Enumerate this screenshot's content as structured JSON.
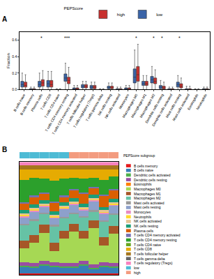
{
  "chart_data": [
    {
      "panel": "A",
      "type": "box",
      "ylabel": "Fraction",
      "legend_title": "PEPScore",
      "legend": "top",
      "categories": [
        "B cells naive",
        "B cells memory",
        "Plasma cells",
        "T cells CD8",
        "T cells CD4 naive",
        "T cells CD4 memory resting",
        "T cells CD4 memory activated",
        "T cells follicular helper",
        "T cells regulatory (Tregs)",
        "T cells gamma delta",
        "NK cells resting",
        "NK cells activated",
        "Monocytes",
        "Macrophages M0",
        "Macrophages M1",
        "Macrophages M2",
        "Dendritic cells resting",
        "Dendritic cells activated",
        "Mast cells resting",
        "Mast cells activated",
        "Eosinophils",
        "Neutrophils"
      ],
      "series": [
        {
          "name": "low",
          "color": "#3A64A8",
          "q1": [
            0.03,
            0,
            0.03,
            0.03,
            0,
            0.1,
            0,
            0.02,
            0.01,
            0,
            0.01,
            0,
            0,
            0.08,
            0.05,
            0.08,
            0.01,
            0,
            0.03,
            0,
            0,
            0
          ],
          "median": [
            0.06,
            0,
            0.06,
            0.07,
            0,
            0.14,
            0.005,
            0.04,
            0.03,
            0,
            0.02,
            0,
            0.01,
            0.15,
            0.07,
            0.12,
            0.03,
            0,
            0.06,
            0,
            0,
            0.005
          ],
          "q3": [
            0.1,
            0.01,
            0.1,
            0.11,
            0,
            0.19,
            0.02,
            0.06,
            0.05,
            0,
            0.04,
            0.01,
            0.02,
            0.25,
            0.1,
            0.16,
            0.05,
            0.01,
            0.09,
            0.01,
            0,
            0.01
          ],
          "lowerfence": [
            0,
            0,
            0,
            0,
            0,
            0,
            0,
            0,
            0,
            0,
            0,
            0,
            0,
            0,
            0,
            0,
            0,
            0,
            0,
            0,
            0,
            0
          ],
          "upperfence": [
            0.2,
            0.03,
            0.2,
            0.22,
            0.01,
            0.32,
            0.05,
            0.1,
            0.09,
            0.01,
            0.08,
            0.03,
            0.05,
            0.48,
            0.17,
            0.28,
            0.11,
            0.03,
            0.17,
            0.04,
            0.01,
            0.03
          ]
        },
        {
          "name": "high",
          "color": "#C8302E",
          "q1": [
            0.03,
            0,
            0.04,
            0.03,
            0,
            0.07,
            0,
            0.02,
            0.01,
            0,
            0.01,
            0,
            0,
            0.1,
            0.05,
            0.07,
            0.005,
            0,
            0.02,
            0,
            0,
            0
          ],
          "median": [
            0.05,
            0,
            0.08,
            0.06,
            0,
            0.11,
            0.005,
            0.04,
            0.03,
            0,
            0.02,
            0,
            0.01,
            0.18,
            0.07,
            0.1,
            0.02,
            0,
            0.04,
            0,
            0,
            0.005
          ],
          "q3": [
            0.09,
            0.01,
            0.12,
            0.11,
            0,
            0.15,
            0.02,
            0.06,
            0.05,
            0,
            0.04,
            0.01,
            0.02,
            0.28,
            0.1,
            0.14,
            0.04,
            0.01,
            0.07,
            0.01,
            0,
            0.01
          ],
          "lowerfence": [
            0,
            0,
            0,
            0,
            0,
            0,
            0,
            0,
            0,
            0,
            0,
            0,
            0,
            0,
            0,
            0,
            0,
            0,
            0,
            0,
            0,
            0
          ],
          "upperfence": [
            0.18,
            0.03,
            0.23,
            0.22,
            0.01,
            0.27,
            0.05,
            0.1,
            0.09,
            0.01,
            0.08,
            0.03,
            0.05,
            0.55,
            0.17,
            0.24,
            0.09,
            0.03,
            0.14,
            0.04,
            0.01,
            0.03
          ]
        }
      ],
      "ylim": [
        0,
        0.7
      ],
      "yticks": [
        {
          "value": 0,
          "label": "0.0"
        },
        0.2,
        0.4,
        0.6
      ],
      "annotations": [
        {
          "category": "Plasma cells",
          "text": "*",
          "y": 0.63
        },
        {
          "category": "T cells CD4 memory resting",
          "text": "***",
          "y": 0.63
        },
        {
          "category": "Macrophages M0",
          "text": "*",
          "y": 0.63
        },
        {
          "category": "Macrophages M2",
          "text": "*",
          "y": 0.63
        },
        {
          "category": "Dendritic cells resting",
          "text": "*",
          "y": 0.63
        },
        {
          "category": "Mast cells resting",
          "text": "*",
          "y": 0.63
        }
      ]
    },
    {
      "panel": "B",
      "type": "bar",
      "stacked": true,
      "tick_labels": false,
      "categories": [
        null,
        null,
        null,
        null,
        null,
        null,
        null,
        null,
        null,
        null
      ],
      "ylim": [
        0,
        1
      ],
      "subgroup": {
        "label": "PEPScore subgroup",
        "categories": [
          "low",
          "high"
        ],
        "colors": [
          "#4DBBD5",
          "#F39B7F"
        ],
        "values": [
          "low",
          "low",
          "low",
          "low",
          "low",
          "high",
          "high",
          "high",
          "high",
          "high"
        ]
      },
      "series": [
        {
          "name": "B cells memory",
          "color": "#E41A1C",
          "values": [
            0.01,
            0.01,
            0.01,
            0.01,
            0.01,
            0.01,
            0.01,
            0.01,
            0.01,
            0.01
          ]
        },
        {
          "name": "B cells naive",
          "color": "#377EB8",
          "values": [
            0.06,
            0.05,
            0.07,
            0.06,
            0.05,
            0.05,
            0.07,
            0.04,
            0.06,
            0.05
          ]
        },
        {
          "name": "Dendritic cells activated",
          "color": "#4DAF4A",
          "values": [
            0.01,
            0.01,
            0.01,
            0.01,
            0.01,
            0.01,
            0.01,
            0.01,
            0.01,
            0.01
          ]
        },
        {
          "name": "Dendritic cells resting",
          "color": "#984EA3",
          "values": [
            0.03,
            0.03,
            0.03,
            0.03,
            0.03,
            0.03,
            0.03,
            0.03,
            0.03,
            0.03
          ]
        },
        {
          "name": "Eosinophils",
          "color": "#FF7F00",
          "values": [
            0,
            0,
            0,
            0,
            0,
            0,
            0,
            0,
            0,
            0
          ]
        },
        {
          "name": "Macrophages M0",
          "color": "#A6D854",
          "values": [
            0.12,
            0.18,
            0.25,
            0.1,
            0.22,
            0.28,
            0.2,
            0.32,
            0.15,
            0.26
          ]
        },
        {
          "name": "Macrophages M1",
          "color": "#A65628",
          "values": [
            0.07,
            0.07,
            0.07,
            0.07,
            0.07,
            0.07,
            0.07,
            0.07,
            0.07,
            0.07
          ]
        },
        {
          "name": "Macrophages M2",
          "color": "#66C2A5",
          "values": [
            0.14,
            0.13,
            0.1,
            0.15,
            0.11,
            0.09,
            0.12,
            0.08,
            0.14,
            0.1
          ]
        },
        {
          "name": "Mast cells activated",
          "color": "#999999",
          "values": [
            0.01,
            0.01,
            0.01,
            0.01,
            0.01,
            0.01,
            0.01,
            0.01,
            0.01,
            0.01
          ]
        },
        {
          "name": "Mast cells resting",
          "color": "#8DA0CB",
          "values": [
            0.06,
            0.07,
            0.05,
            0.06,
            0.07,
            0.07,
            0.05,
            0.08,
            0.06,
            0.07
          ]
        },
        {
          "name": "Monocytes",
          "color": "#E78AC3",
          "values": [
            0.01,
            0.01,
            0.01,
            0.01,
            0.01,
            0.01,
            0.01,
            0.01,
            0.01,
            0.01
          ]
        },
        {
          "name": "Neutrophils",
          "color": "#FFD92F",
          "values": [
            0.01,
            0.01,
            0.01,
            0.01,
            0.01,
            0.01,
            0.01,
            0.01,
            0.01,
            0.01
          ]
        },
        {
          "name": "NK cells activated",
          "color": "#E5C494",
          "values": [
            0.01,
            0.01,
            0.01,
            0.01,
            0.01,
            0.01,
            0.01,
            0.01,
            0.01,
            0.01
          ]
        },
        {
          "name": "NK cells resting",
          "color": "#1B9E77",
          "values": [
            0.03,
            0.03,
            0.03,
            0.03,
            0.03,
            0.03,
            0.03,
            0.03,
            0.03,
            0.03
          ]
        },
        {
          "name": "Plasma cells",
          "color": "#D95F02",
          "values": [
            0.06,
            0.07,
            0.06,
            0.08,
            0.05,
            0.07,
            0.09,
            0.06,
            0.1,
            0.08
          ]
        },
        {
          "name": "T cells CD4 memory activated",
          "color": "#7570B3",
          "values": [
            0.01,
            0.01,
            0.01,
            0.01,
            0.01,
            0.01,
            0.01,
            0.01,
            0.01,
            0.01
          ]
        },
        {
          "name": "T cells CD4 memory resting",
          "color": "#2CA02C",
          "values": [
            0.2,
            0.16,
            0.12,
            0.18,
            0.15,
            0.1,
            0.12,
            0.08,
            0.13,
            0.11
          ]
        },
        {
          "name": "T cells CD4 naive",
          "color": "#66A61E",
          "values": [
            0,
            0,
            0,
            0,
            0,
            0,
            0,
            0,
            0,
            0
          ]
        },
        {
          "name": "T cells CD8",
          "color": "#E6AB02",
          "values": [
            0.09,
            0.07,
            0.08,
            0.1,
            0.08,
            0.07,
            0.08,
            0.07,
            0.09,
            0.06
          ]
        },
        {
          "name": "T cells follicular helper",
          "color": "#A6761D",
          "values": [
            0.04,
            0.04,
            0.04,
            0.04,
            0.04,
            0.04,
            0.04,
            0.04,
            0.04,
            0.04
          ]
        },
        {
          "name": "T cells gamma delta",
          "color": "#666666",
          "values": [
            0,
            0,
            0,
            0,
            0,
            0,
            0,
            0,
            0,
            0
          ]
        },
        {
          "name": "T cells regulatory (Tregs)",
          "color": "#F781BF",
          "values": [
            0.03,
            0.03,
            0.03,
            0.03,
            0.03,
            0.03,
            0.03,
            0.03,
            0.03,
            0.03
          ]
        }
      ]
    }
  ]
}
